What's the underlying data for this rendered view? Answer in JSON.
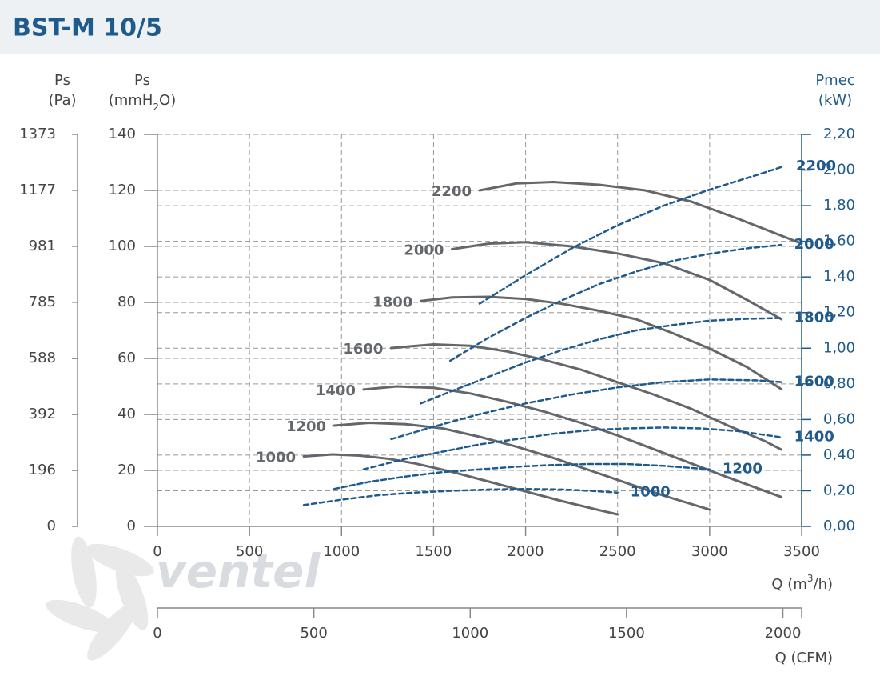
{
  "chart_data": {
    "type": "line",
    "title": "BST-M 10/5",
    "y_label": {
      "name": "Ps",
      "parts": [
        "(mmH",
        "2",
        "O)"
      ]
    },
    "pa_axis": {
      "name": "Ps",
      "unit": "(Pa)",
      "ylim": [
        0,
        1373
      ],
      "yticks": [
        0,
        196,
        392,
        588,
        785,
        981,
        1177,
        1373
      ]
    },
    "y2_label": {
      "name": "Pmec",
      "unit": "(kW)"
    },
    "x_label": {
      "parts": [
        "Q (m",
        "3",
        "/h)"
      ]
    },
    "cfm_axis": {
      "label": "Q (CFM)",
      "xlim": [
        0,
        2060
      ],
      "xticks": [
        0,
        500,
        1000,
        1500,
        2000
      ]
    },
    "watermark": "ventel",
    "xlim": [
      0,
      3500
    ],
    "xticks": [
      0,
      500,
      1000,
      1500,
      2000,
      2500,
      3000,
      3500
    ],
    "ylim": [
      0,
      140
    ],
    "yticks": [
      0,
      20,
      40,
      60,
      80,
      100,
      120,
      140
    ],
    "y2lim": [
      0,
      2.2
    ],
    "y2ticks": [
      {
        "value": 0,
        "label": "0,00"
      },
      {
        "value": 0.2,
        "label": "0,20"
      },
      {
        "value": 0.4,
        "label": "0,40"
      },
      {
        "value": 0.6,
        "label": "0,60"
      },
      {
        "value": 0.8,
        "label": "0,80"
      },
      {
        "value": 1.0,
        "label": "1,00"
      },
      {
        "value": 1.2,
        "label": "1,20"
      },
      {
        "value": 1.4,
        "label": "1,40"
      },
      {
        "value": 1.6,
        "label": "1,60"
      },
      {
        "value": 1.8,
        "label": "1,80"
      },
      {
        "value": 2.0,
        "label": "2,00"
      },
      {
        "value": 2.2,
        "label": "2,20"
      }
    ],
    "grid": true,
    "series": [
      {
        "name": "2200",
        "color": "#63676b",
        "axis": "y",
        "x": [
          1750,
          1950,
          2150,
          2400,
          2650,
          2900,
          3150,
          3500
        ],
        "values": [
          120,
          122.5,
          123,
          122,
          120,
          116,
          110,
          101
        ]
      },
      {
        "name": "2000",
        "color": "#63676b",
        "axis": "y",
        "x": [
          1600,
          1800,
          2000,
          2250,
          2500,
          2750,
          3000,
          3200,
          3390
        ],
        "values": [
          99,
          101,
          101.5,
          100,
          97.5,
          94,
          88,
          81,
          74
        ]
      },
      {
        "name": "1800",
        "color": "#63676b",
        "axis": "y",
        "x": [
          1430,
          1600,
          1800,
          2000,
          2200,
          2400,
          2600,
          2800,
          3000,
          3200,
          3390
        ],
        "values": [
          80.5,
          81.8,
          82,
          81.2,
          79.5,
          77,
          74,
          69,
          63.5,
          57,
          49
        ]
      },
      {
        "name": "1600",
        "color": "#63676b",
        "axis": "y",
        "x": [
          1270,
          1500,
          1700,
          1900,
          2100,
          2300,
          2500,
          2700,
          2900,
          3100,
          3300,
          3390
        ],
        "values": [
          63.7,
          65,
          64.5,
          62.5,
          59.5,
          56,
          51.5,
          47,
          42,
          36,
          30.5,
          27.4
        ]
      },
      {
        "name": "1400",
        "color": "#63676b",
        "axis": "y",
        "x": [
          1120,
          1300,
          1500,
          1700,
          1900,
          2100,
          2300,
          2500,
          2700,
          2900,
          3100,
          3390
        ],
        "values": [
          48.9,
          50,
          49.5,
          47.5,
          44.5,
          41,
          37,
          32.5,
          27.5,
          22.5,
          17.5,
          10.5
        ]
      },
      {
        "name": "1200",
        "color": "#63676b",
        "axis": "y",
        "x": [
          960,
          1150,
          1350,
          1550,
          1750,
          1950,
          2150,
          2350,
          2550,
          2750,
          3000
        ],
        "values": [
          36,
          37,
          36.5,
          35,
          32,
          28.5,
          24.5,
          20,
          15.5,
          11,
          6
        ]
      },
      {
        "name": "1000",
        "color": "#63676b",
        "axis": "y",
        "x": [
          795,
          950,
          1100,
          1250,
          1400,
          1600,
          1800,
          2000,
          2200,
          2400,
          2500
        ],
        "values": [
          25,
          25.7,
          25.3,
          24.2,
          22.5,
          19.5,
          16,
          12.5,
          9,
          5.8,
          4.3
        ]
      },
      {
        "name": "2200",
        "color": "#1f5a8c",
        "axis": "y2",
        "x": [
          1750,
          2000,
          2250,
          2500,
          2750,
          3000,
          3250,
          3400
        ],
        "values": [
          1.25,
          1.41,
          1.56,
          1.69,
          1.8,
          1.89,
          1.97,
          2.02
        ]
      },
      {
        "name": "2000",
        "color": "#1f5a8c",
        "axis": "y2",
        "x": [
          1590,
          1800,
          2000,
          2200,
          2400,
          2600,
          2800,
          3000,
          3200,
          3390
        ],
        "values": [
          0.93,
          1.06,
          1.17,
          1.27,
          1.36,
          1.43,
          1.49,
          1.53,
          1.56,
          1.58
        ]
      },
      {
        "name": "1800",
        "color": "#1f5a8c",
        "axis": "y2",
        "x": [
          1430,
          1600,
          1800,
          2000,
          2200,
          2400,
          2600,
          2800,
          3000,
          3200,
          3390
        ],
        "values": [
          0.69,
          0.76,
          0.84,
          0.92,
          0.99,
          1.05,
          1.1,
          1.13,
          1.155,
          1.165,
          1.17
        ]
      },
      {
        "name": "1600",
        "color": "#1f5a8c",
        "axis": "y2",
        "x": [
          1270,
          1500,
          1750,
          2000,
          2250,
          2500,
          2750,
          3000,
          3250,
          3390
        ],
        "values": [
          0.49,
          0.56,
          0.63,
          0.69,
          0.74,
          0.78,
          0.81,
          0.825,
          0.82,
          0.81
        ]
      },
      {
        "name": "1400",
        "color": "#1f5a8c",
        "axis": "y2",
        "x": [
          1120,
          1350,
          1550,
          1750,
          1950,
          2150,
          2350,
          2550,
          2750,
          2950,
          3150,
          3390
        ],
        "values": [
          0.32,
          0.38,
          0.42,
          0.46,
          0.49,
          0.52,
          0.54,
          0.55,
          0.555,
          0.55,
          0.535,
          0.5
        ]
      },
      {
        "name": "1200",
        "color": "#1f5a8c",
        "axis": "y2",
        "x": [
          960,
          1150,
          1350,
          1550,
          1750,
          1950,
          2150,
          2350,
          2550,
          2750,
          3000
        ],
        "values": [
          0.21,
          0.25,
          0.28,
          0.305,
          0.32,
          0.335,
          0.345,
          0.35,
          0.35,
          0.34,
          0.32
        ]
      },
      {
        "name": "1000",
        "color": "#1f5a8c",
        "axis": "y2",
        "x": [
          795,
          1000,
          1200,
          1400,
          1600,
          1800,
          2000,
          2200,
          2350,
          2500
        ],
        "values": [
          0.12,
          0.15,
          0.175,
          0.19,
          0.2,
          0.207,
          0.21,
          0.207,
          0.2,
          0.19
        ]
      }
    ]
  }
}
